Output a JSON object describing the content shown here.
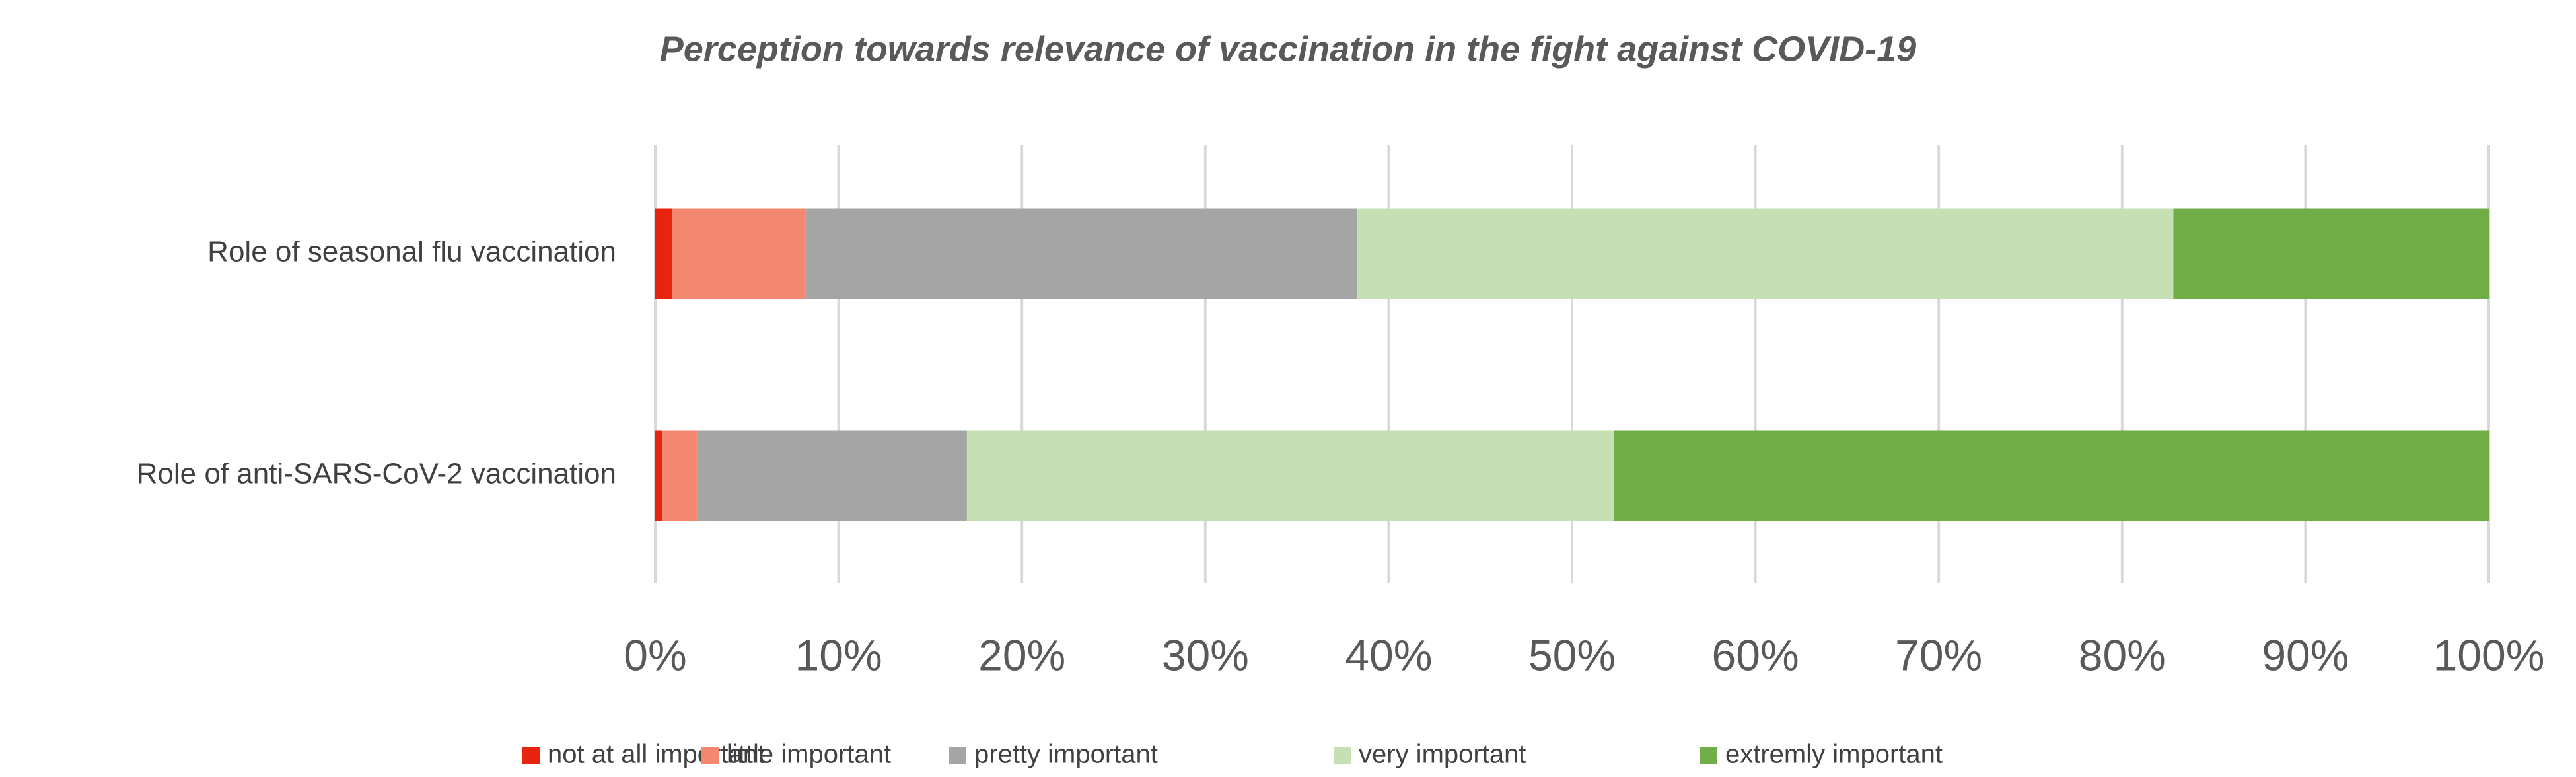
{
  "chart_data": {
    "type": "stacked_barh",
    "title": "Perception towards relevance of vaccination in the fight against COVID-19",
    "categories": [
      "Role of seasonal flu vaccination",
      "Role of anti-SARS-CoV-2 vaccination"
    ],
    "series": [
      {
        "name": "not at all important",
        "color": "#e8230f",
        "values": [
          0.9,
          0.4
        ]
      },
      {
        "name": "little important",
        "color": "#f4876f",
        "values": [
          7.3,
          1.9
        ]
      },
      {
        "name": "pretty important",
        "color": "#a5a5a5",
        "values": [
          30.1,
          14.7
        ]
      },
      {
        "name": "very important",
        "color": "#c5e0b4",
        "values": [
          44.5,
          35.3
        ]
      },
      {
        "name": "extremly important",
        "color": "#70ad47",
        "values": [
          17.2,
          47.7
        ]
      }
    ],
    "xlim": [
      0,
      100
    ],
    "xticks": [
      {
        "value": 0,
        "label": "0%"
      },
      {
        "value": 10,
        "label": "10%"
      },
      {
        "value": 20,
        "label": "20%"
      },
      {
        "value": 30,
        "label": "30%"
      },
      {
        "value": 40,
        "label": "40%"
      },
      {
        "value": 50,
        "label": "50%"
      },
      {
        "value": 60,
        "label": "60%"
      },
      {
        "value": 70,
        "label": "70%"
      },
      {
        "value": 80,
        "label": "80%"
      },
      {
        "value": 90,
        "label": "90%"
      },
      {
        "value": 100,
        "label": "100%"
      }
    ],
    "grid": true,
    "legend": "bottom"
  }
}
